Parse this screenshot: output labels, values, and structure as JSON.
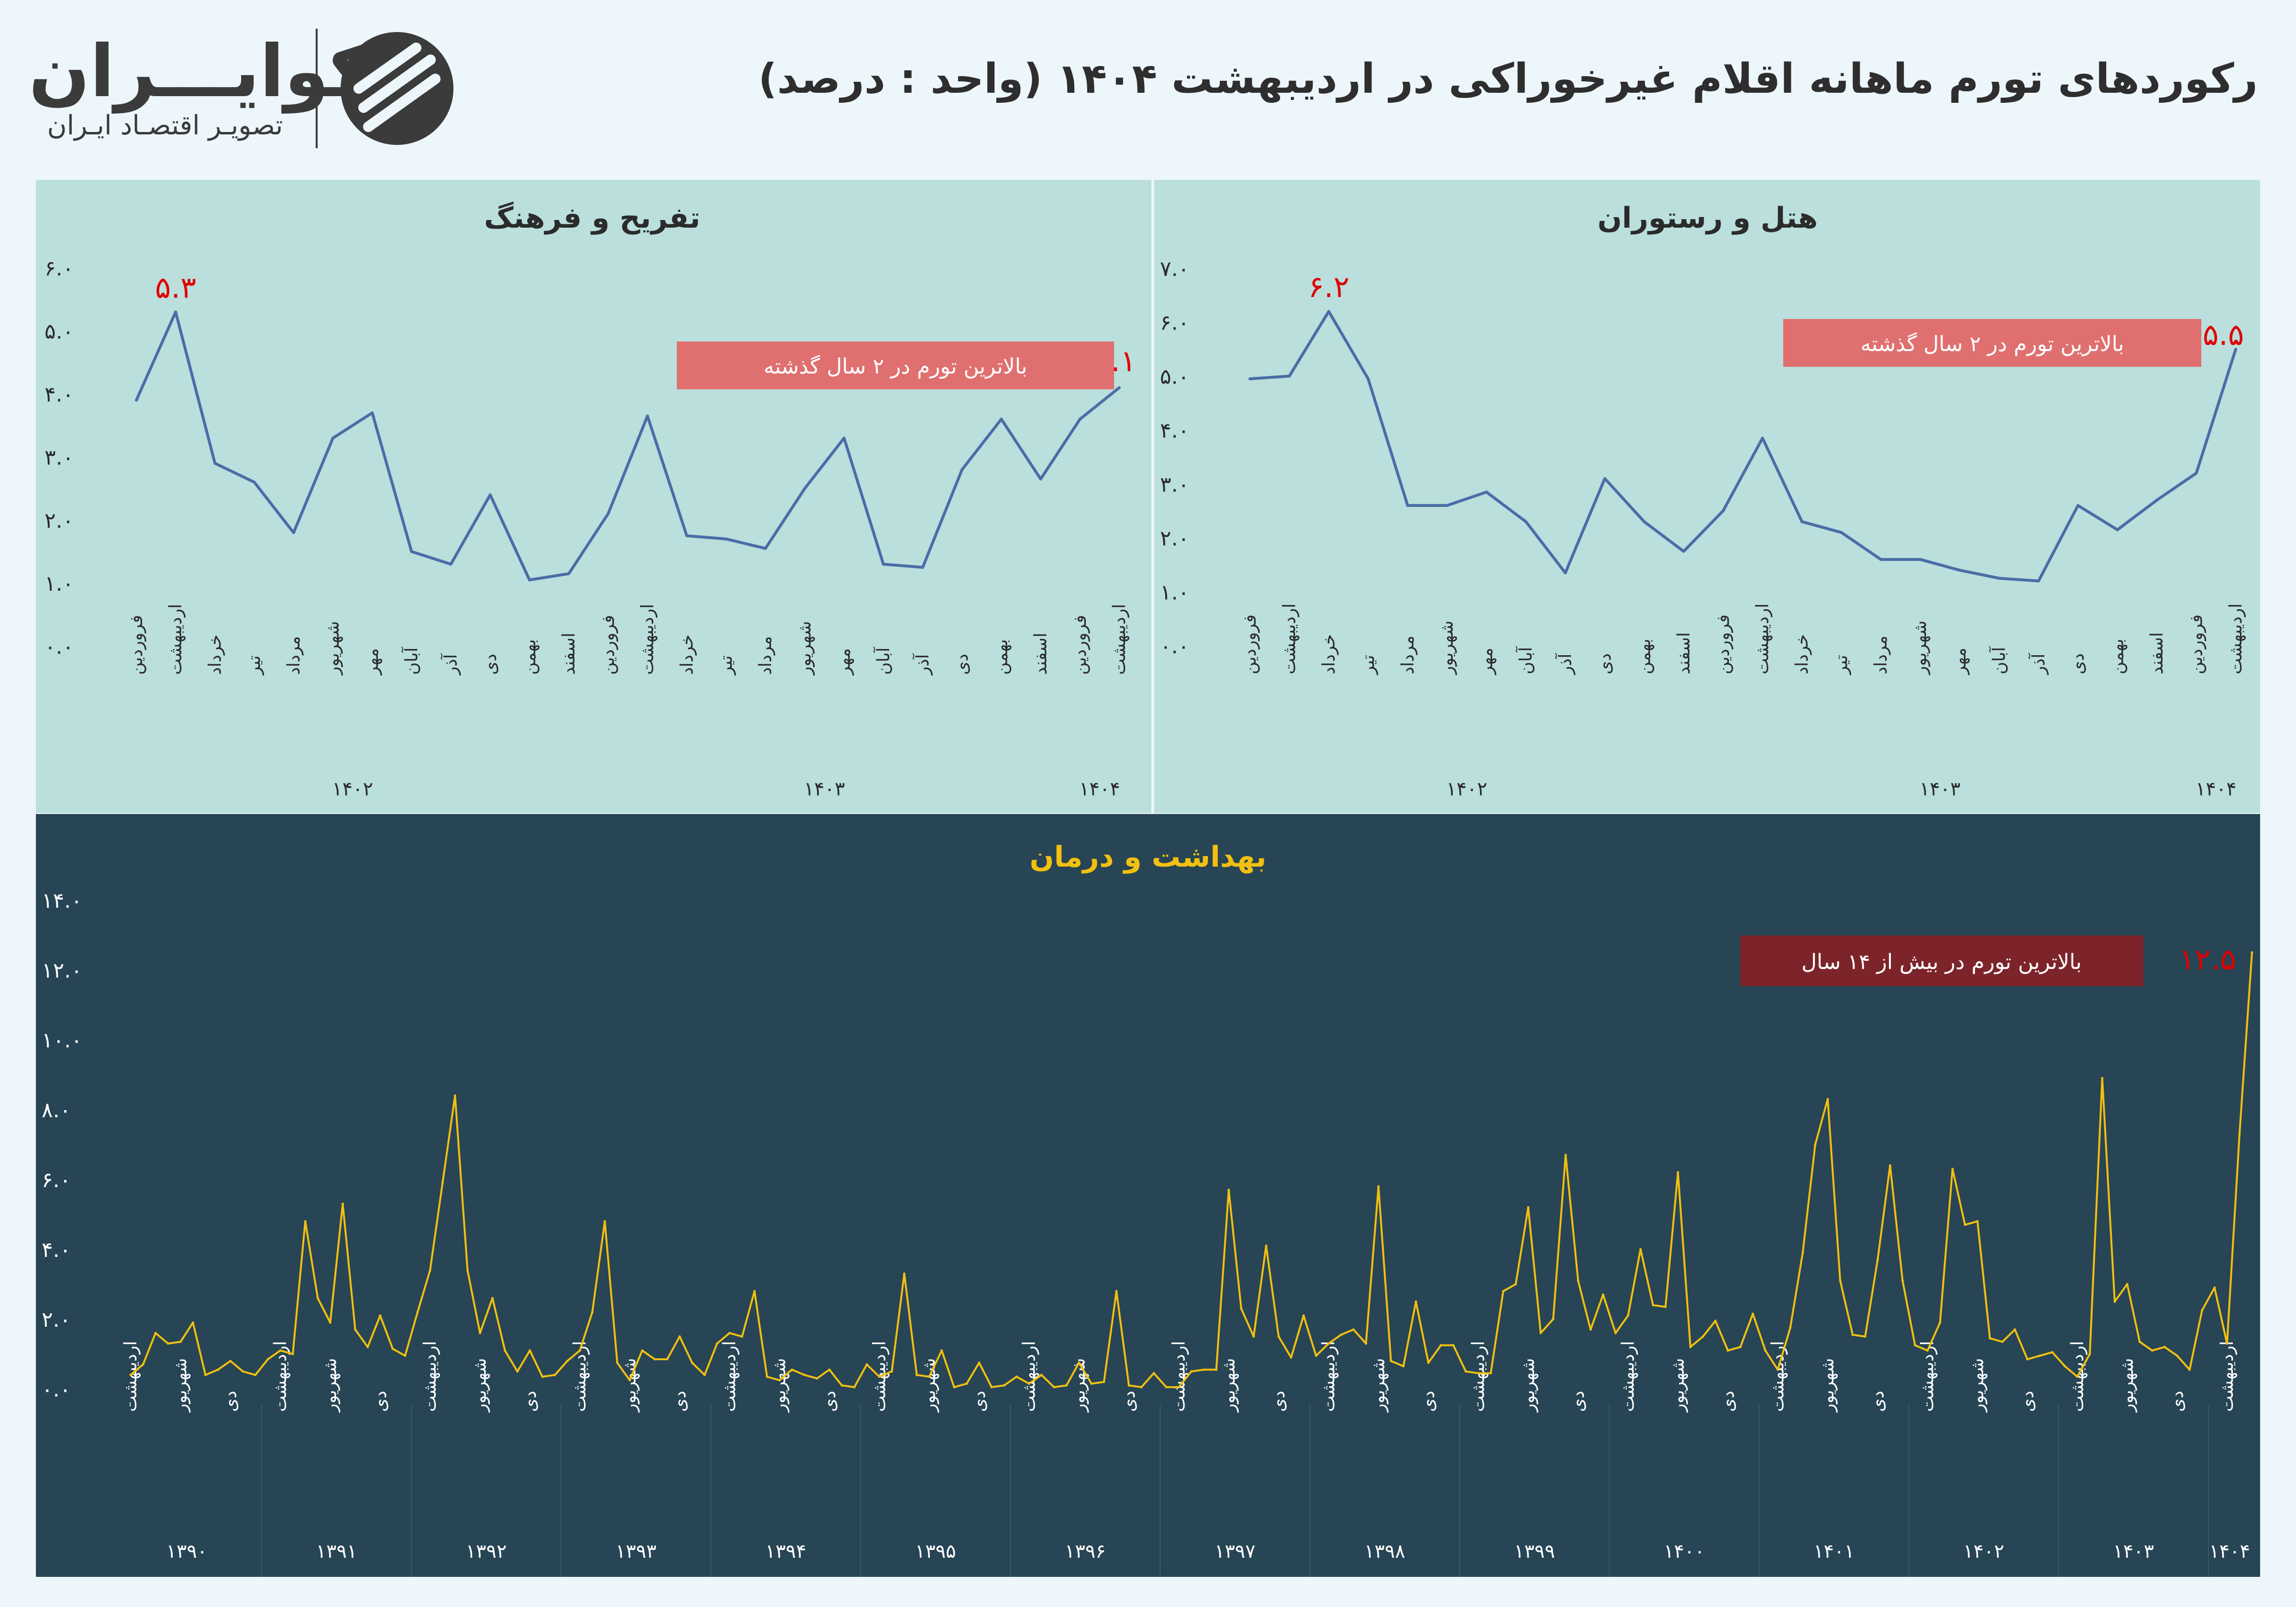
{
  "header": {
    "title": "رکوردهای تورم ماهانه اقلام غیرخوراکی در اردیبهشت ۱۴۰۴ (واحد : درصد)",
    "logo_name": "اکوایـــران",
    "logo_tagline": "تصویـر اقتصـاد ایـران"
  },
  "colors": {
    "page_bg": "#edf6fa",
    "light_panel_bg": "#badfdc",
    "dark_panel_bg": "#274554",
    "light_line": "#4a6da8",
    "dark_line": "#f2c00f",
    "highlight": "#e00000",
    "note_box_light": "#e07070",
    "note_box_dark": "#7d242a",
    "dark_title": "#f2c00f"
  },
  "chart_data": [
    {
      "id": "recreation",
      "type": "line",
      "title": "تفریح و فرهنگ",
      "ylim": [
        0,
        6
      ],
      "yticks": [
        "۰.۰",
        "۱.۰",
        "۲.۰",
        "۳.۰",
        "۴.۰",
        "۵.۰",
        "۶.۰"
      ],
      "x": [
        "فروردین",
        "اردیبهشت",
        "خرداد",
        "تیر",
        "مرداد",
        "شهریور",
        "مهر",
        "آبان",
        "آذر",
        "دی",
        "بهمن",
        "اسفند",
        "فروردین",
        "اردیبهشت",
        "خرداد",
        "تیر",
        "مرداد",
        "شهریور",
        "مهر",
        "آبان",
        "آذر",
        "دی",
        "بهمن",
        "اسفند",
        "فروردین",
        "اردیبهشت"
      ],
      "years": [
        {
          "label": "۱۴۰۲",
          "at": 5.5
        },
        {
          "label": "۱۴۰۳",
          "at": 17.5
        },
        {
          "label": "۱۴۰۴",
          "at": 24.5
        }
      ],
      "values": [
        3.9,
        5.3,
        2.9,
        2.6,
        1.8,
        3.3,
        3.7,
        1.5,
        1.3,
        2.4,
        1.05,
        1.15,
        2.1,
        3.65,
        1.75,
        1.7,
        1.55,
        2.5,
        3.3,
        1.3,
        1.25,
        2.8,
        3.6,
        2.65,
        3.6,
        4.1
      ],
      "peak_label": "۵.۳",
      "last_label": "۴.۱",
      "note": "بالاترین تورم در ۲ سال گذشته"
    },
    {
      "id": "hotel",
      "type": "line",
      "title": "هتل و رستوران",
      "ylim": [
        0,
        7
      ],
      "yticks": [
        "۰.۰",
        "۱.۰",
        "۲.۰",
        "۳.۰",
        "۴.۰",
        "۵.۰",
        "۶.۰",
        "۷.۰"
      ],
      "x": [
        "فروردین",
        "اردیبهشت",
        "خرداد",
        "تیر",
        "مرداد",
        "شهریور",
        "مهر",
        "آبان",
        "آذر",
        "دی",
        "بهمن",
        "اسفند",
        "فروردین",
        "اردیبهشت",
        "خرداد",
        "تیر",
        "مرداد",
        "شهریور",
        "مهر",
        "آبان",
        "آذر",
        "دی",
        "بهمن",
        "اسفند",
        "فروردین",
        "اردیبهشت"
      ],
      "years": [
        {
          "label": "۱۴۰۲",
          "at": 5.5
        },
        {
          "label": "۱۴۰۳",
          "at": 17.5
        },
        {
          "label": "۱۴۰۴",
          "at": 24.5
        }
      ],
      "values": [
        4.95,
        5.0,
        6.2,
        4.95,
        2.6,
        2.6,
        2.85,
        2.3,
        1.35,
        3.1,
        2.3,
        1.75,
        2.5,
        3.85,
        2.3,
        2.1,
        1.6,
        1.6,
        1.4,
        1.25,
        1.2,
        2.6,
        2.15,
        2.7,
        3.2,
        5.5
      ],
      "peak_label": "۶.۲",
      "last_label": "۵.۵",
      "note": "بالاترین تورم در ۲ سال گذشته"
    },
    {
      "id": "health",
      "type": "line",
      "title": "بهداشت و درمان",
      "ylim": [
        0,
        14
      ],
      "yticks": [
        "۰.۰",
        "۲.۰",
        "۴.۰",
        "۶.۰",
        "۸.۰",
        "۱۰.۰",
        "۱۲.۰",
        "۱۴.۰"
      ],
      "month_ticks": [
        "اردیبهشت",
        "شهریور",
        "دی"
      ],
      "years": [
        "۱۳۹۰",
        "۱۳۹۱",
        "۱۳۹۲",
        "۱۳۹۳",
        "۱۳۹۴",
        "۱۳۹۵",
        "۱۳۹۶",
        "۱۳۹۷",
        "۱۳۹۸",
        "۱۳۹۹",
        "۱۴۰۰",
        "۱۴۰۱",
        "۱۴۰۲",
        "۱۴۰۳",
        "۱۴۰۴"
      ],
      "values": [
        0.4,
        0.7,
        1.6,
        1.3,
        1.35,
        1.9,
        0.4,
        0.55,
        0.8,
        0.5,
        0.4,
        0.85,
        1.1,
        1.0,
        4.8,
        2.6,
        1.9,
        5.3,
        1.7,
        1.2,
        2.1,
        1.15,
        0.95,
        2.2,
        3.4,
        5.9,
        8.4,
        3.4,
        1.6,
        2.6,
        1.1,
        0.5,
        1.1,
        0.35,
        0.4,
        0.8,
        1.1,
        2.2,
        4.8,
        0.75,
        0.25,
        1.1,
        0.85,
        0.85,
        1.5,
        0.75,
        0.4,
        1.3,
        1.6,
        1.5,
        2.8,
        0.35,
        0.25,
        0.55,
        0.4,
        0.3,
        0.55,
        0.1,
        0.05,
        0.7,
        0.35,
        0.5,
        3.3,
        0.4,
        0.35,
        1.1,
        0.05,
        0.15,
        0.75,
        0.05,
        0.1,
        0.35,
        0.15,
        0.4,
        0.05,
        0.1,
        0.75,
        0.15,
        0.2,
        2.8,
        0.1,
        0.05,
        0.45,
        0.05,
        0.05,
        0.5,
        0.55,
        0.55,
        5.7,
        2.3,
        1.5,
        4.1,
        1.5,
        0.9,
        2.1,
        0.95,
        1.3,
        1.55,
        1.7,
        1.3,
        5.8,
        0.8,
        0.65,
        2.5,
        0.75,
        1.25,
        1.25,
        0.5,
        0.45,
        0.45,
        2.8,
        3.0,
        5.2,
        1.6,
        2.0,
        6.7,
        3.1,
        1.7,
        2.7,
        1.6,
        2.1,
        4.0,
        2.4,
        2.35,
        6.2,
        1.2,
        1.5,
        1.95,
        1.1,
        1.2,
        2.15,
        1.1,
        0.55,
        1.75,
        3.9,
        7.0,
        8.3,
        3.1,
        1.55,
        1.5,
        3.7,
        6.4,
        3.1,
        1.25,
        1.1,
        1.9,
        6.3,
        4.7,
        4.8,
        1.45,
        1.35,
        1.7,
        0.85,
        0.95,
        1.05,
        0.65,
        0.35,
        1.0,
        8.9,
        2.5,
        3.0,
        1.35,
        1.1,
        1.2,
        0.95,
        0.55,
        2.25,
        2.9,
        1.3,
        7.3,
        12.5
      ],
      "last_label": "۱۲.۵",
      "note": "بالاترین تورم در بیش از ۱۴ سال"
    }
  ]
}
